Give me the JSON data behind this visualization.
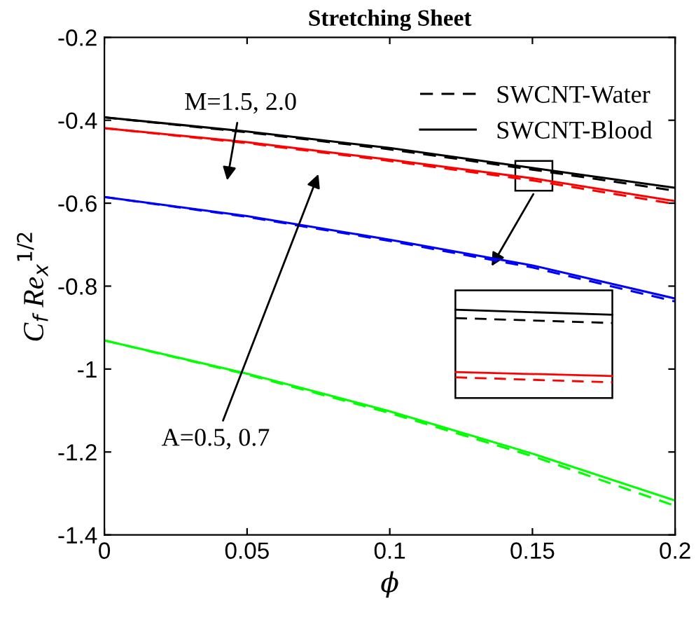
{
  "chart_data": {
    "type": "line",
    "title": "Stretching Sheet",
    "xlabel": "ϕ",
    "ylabel": "C$_{f}$ Re$_{x}$$^{1/2}$",
    "x": [
      0,
      0.05,
      0.1,
      0.15,
      0.2
    ],
    "series": [
      {
        "name": "SWCNT-Water",
        "color": "#000000",
        "line_style": "dashed",
        "values": [
          -0.393,
          -0.429,
          -0.47,
          -0.519,
          -0.57
        ]
      },
      {
        "name": "SWCNT-Blood",
        "color": "#000000",
        "line_style": "solid",
        "values": [
          -0.393,
          -0.427,
          -0.467,
          -0.515,
          -0.563
        ]
      },
      {
        "color": "#ff0000",
        "line_style": "dashed",
        "values": [
          -0.419,
          -0.455,
          -0.498,
          -0.545,
          -0.602
        ]
      },
      {
        "color": "#ff0000",
        "line_style": "solid",
        "values": [
          -0.419,
          -0.453,
          -0.495,
          -0.54,
          -0.595
        ]
      },
      {
        "color": "#0000ff",
        "line_style": "dashed",
        "values": [
          -0.585,
          -0.633,
          -0.691,
          -0.755,
          -0.837
        ]
      },
      {
        "color": "#0000ff",
        "line_style": "solid",
        "values": [
          -0.585,
          -0.631,
          -0.688,
          -0.75,
          -0.83
        ]
      },
      {
        "color": "#00ff00",
        "line_style": "dashed",
        "values": [
          -0.931,
          -1.013,
          -1.106,
          -1.21,
          -1.33
        ]
      },
      {
        "color": "#00ff00",
        "line_style": "solid",
        "values": [
          -0.931,
          -1.011,
          -1.102,
          -1.204,
          -1.317
        ]
      }
    ],
    "xlim": [
      0,
      0.2
    ],
    "xticks": [
      0,
      0.05,
      0.1,
      0.15,
      0.2
    ],
    "ylim": [
      -1.4,
      -0.2
    ],
    "yticks": [
      -1.4,
      -1.2,
      -1,
      -0.8,
      -0.6,
      -0.4,
      -0.2
    ],
    "grid": false,
    "legend": "top right",
    "marker": "none",
    "annotations": [
      "M=1.5, 2.0",
      "A=0.5, 0.7"
    ]
  }
}
